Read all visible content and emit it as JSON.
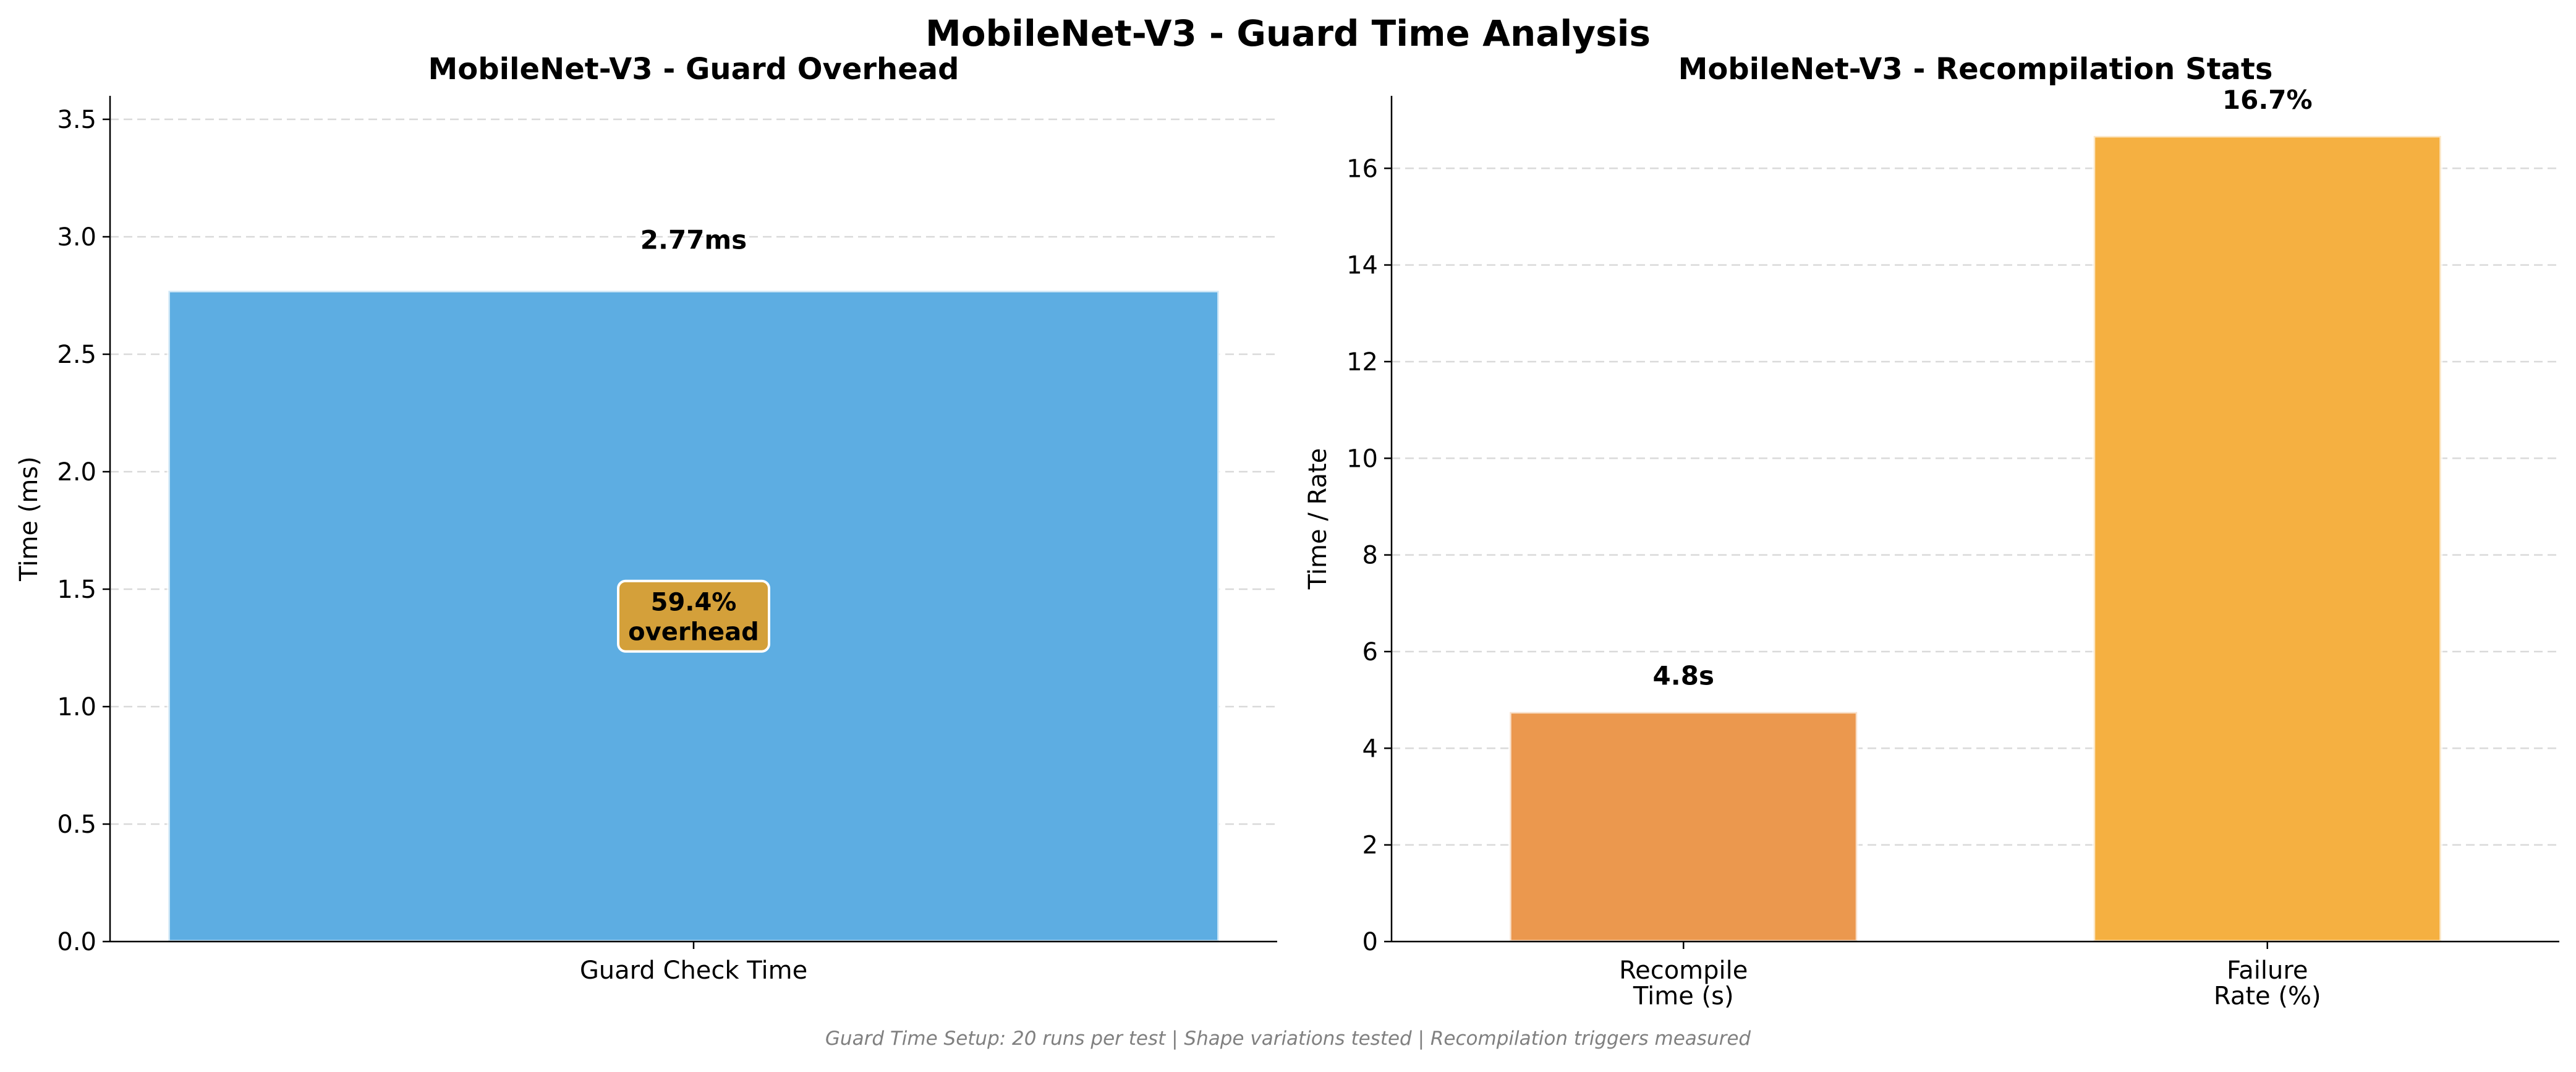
{
  "suptitle": "MobileNet-V3 - Guard Time Analysis",
  "footnote": "Guard Time Setup: 20 runs per test | Shape variations tested | Recompilation triggers measured",
  "chart_data": [
    {
      "type": "bar",
      "title": "MobileNet-V3 - Guard Overhead",
      "xlabel": "",
      "ylabel": "Time (ms)",
      "categories": [
        "Guard Check Time"
      ],
      "values": [
        2.77
      ],
      "value_labels": [
        "2.77ms"
      ],
      "ylim": [
        0,
        3.6
      ],
      "yticks": [
        0.0,
        0.5,
        1.0,
        1.5,
        2.0,
        2.5,
        3.0,
        3.5
      ],
      "ytick_labels": [
        "0.0",
        "0.5",
        "1.0",
        "1.5",
        "2.0",
        "2.5",
        "3.0",
        "3.5"
      ],
      "colors": [
        "#5dade2"
      ],
      "annotation": {
        "lines": [
          "59.4%",
          "overhead"
        ],
        "y": 1.385,
        "color": "#d4a03a"
      },
      "grid": "y-dashed"
    },
    {
      "type": "bar",
      "title": "MobileNet-V3 - Recompilation Stats",
      "xlabel": "",
      "ylabel": "Time / Rate",
      "categories": [
        [
          "Recompile",
          "Time (s)"
        ],
        [
          "Failure",
          "Rate (%)"
        ]
      ],
      "values": [
        4.75,
        16.67
      ],
      "value_labels": [
        "4.8s",
        "16.7%"
      ],
      "ylim": [
        0,
        17.5
      ],
      "yticks": [
        0,
        2,
        4,
        6,
        8,
        10,
        12,
        14,
        16
      ],
      "ytick_labels": [
        "0",
        "2",
        "4",
        "6",
        "8",
        "10",
        "12",
        "14",
        "16"
      ],
      "colors": [
        "#eb984e",
        "#f5b041"
      ],
      "grid": "y-dashed"
    }
  ]
}
